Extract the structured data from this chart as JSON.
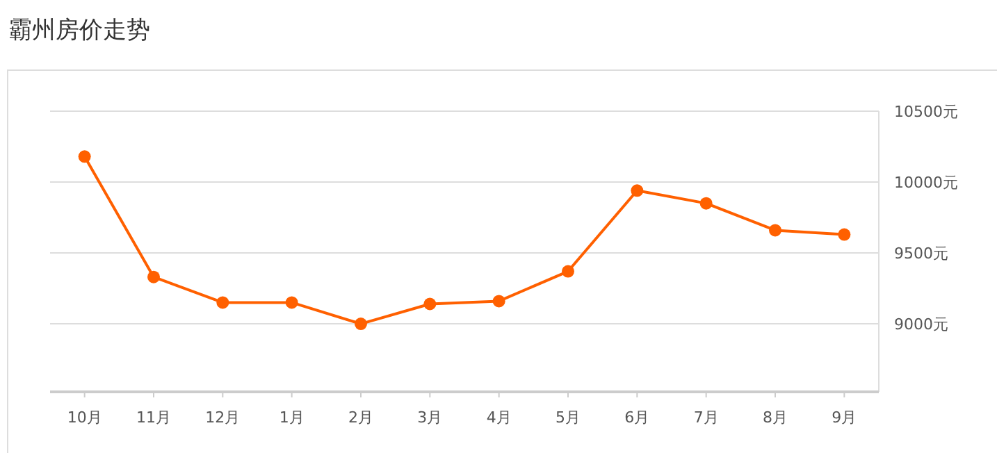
{
  "chart_data": {
    "type": "line",
    "title": "霸州房价走势",
    "categories": [
      "10月",
      "11月",
      "12月",
      "1月",
      "2月",
      "3月",
      "4月",
      "5月",
      "6月",
      "7月",
      "8月",
      "9月"
    ],
    "series": [
      {
        "color": "#ff6000",
        "values": [
          10180,
          9330,
          9150,
          9150,
          9000,
          9140,
          9160,
          9370,
          9940,
          9850,
          9660,
          9630
        ]
      }
    ],
    "ylim": [
      8520,
      10500
    ],
    "yticks": [
      {
        "value": 9000,
        "label": "9000元"
      },
      {
        "value": 9500,
        "label": "9500元"
      },
      {
        "value": 10000,
        "label": "10000元"
      },
      {
        "value": 10500,
        "label": "10500元"
      }
    ],
    "grid": "y",
    "marker": "circle",
    "line_style": "solid"
  }
}
